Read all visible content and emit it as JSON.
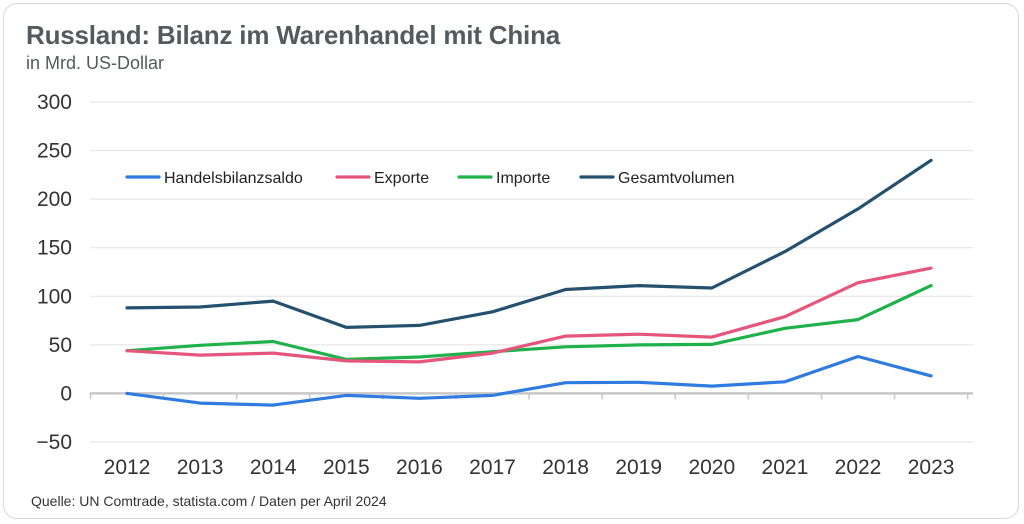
{
  "title": "Russland: Bilanz im Warenhandel mit China",
  "subtitle": "in Mrd. US-Dollar",
  "source": "Quelle: UN Comtrade, statista.com /  Daten per April 2024",
  "chart_data": {
    "type": "line",
    "title": "Russland: Bilanz im Warenhandel mit China",
    "subtitle": "in Mrd. US-Dollar",
    "xlabel": "",
    "ylabel": "",
    "x": [
      "2012",
      "2013",
      "2014",
      "2015",
      "2016",
      "2017",
      "2018",
      "2019",
      "2020",
      "2021",
      "2022",
      "2023"
    ],
    "ylim": [
      -50,
      300
    ],
    "yticks": [
      -50,
      0,
      50,
      100,
      150,
      200,
      250,
      300
    ],
    "grid": true,
    "legend_position": "top-left",
    "series": [
      {
        "name": "Handelsbilanzsaldo",
        "color": "#2f7be0",
        "values": [
          0,
          -10,
          -12,
          -2,
          -5,
          -2,
          11,
          11.5,
          7.5,
          12,
          38,
          18
        ]
      },
      {
        "name": "Exporte",
        "color": "#e5557c",
        "values": [
          44,
          39.5,
          41.5,
          33.5,
          32.5,
          41.5,
          59,
          61,
          58,
          79,
          114,
          129
        ]
      },
      {
        "name": "Importe",
        "color": "#1fb24a",
        "values": [
          44,
          49.5,
          53.5,
          35,
          37.5,
          43,
          48,
          50,
          50.5,
          67,
          76,
          111
        ]
      },
      {
        "name": "Gesamtvolumen",
        "color": "#25506e",
        "values": [
          88,
          89,
          95,
          68,
          70,
          84,
          107,
          111,
          108.5,
          146,
          190,
          240
        ]
      }
    ]
  }
}
